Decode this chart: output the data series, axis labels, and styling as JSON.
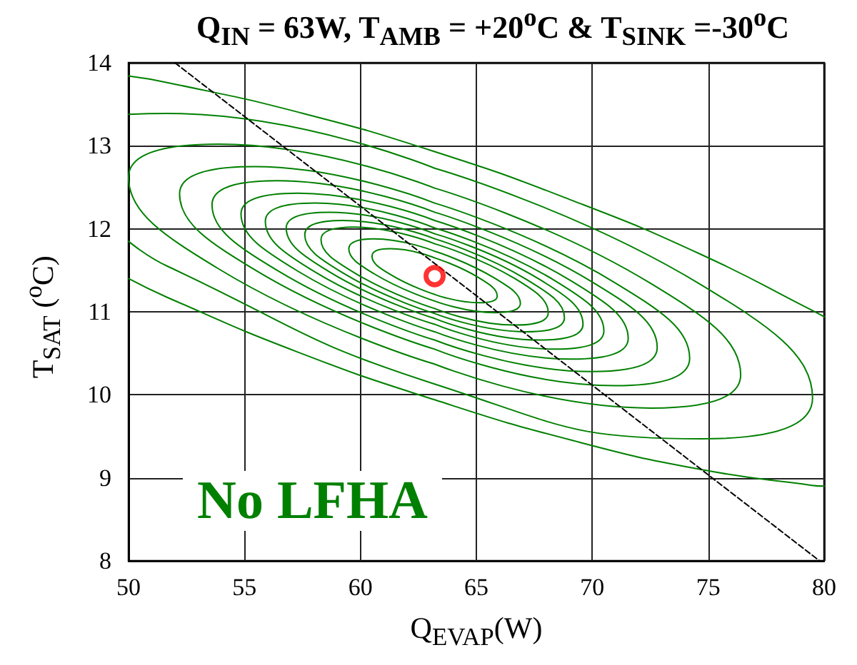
{
  "chart_data": {
    "type": "line",
    "title": "Q$_{IN}$ = 63W, T$_{AMB}$ = +20$^{o}$C & T$_{SINK}$ =-30$^{o}$C",
    "xlabel": "Q$_{EVAP}$(W)",
    "ylabel": "T$_{SAT}$ ($^{o}$C)",
    "annotations": [
      "No LFHA"
    ],
    "xlim": [
      50,
      80
    ],
    "xticks": [
      50,
      55,
      60,
      65,
      70,
      75,
      80
    ],
    "ylim": [
      8,
      14
    ],
    "yticks": [
      8,
      9,
      10,
      11,
      12,
      13,
      14
    ],
    "grid": true,
    "marker": "none",
    "line_style": "solid",
    "series": [
      {
        "color": "#008000",
        "x": [
          80,
          79.46,
          74.7,
          69.15,
          63.2,
          57.25,
          51.7,
          50,
          null,
          50,
          51.7,
          57.25,
          63.2,
          69.15,
          74.7,
          79.46,
          80
        ],
        "values": [
          10.94,
          11.02,
          11.69,
          12.34,
          12.93,
          13.41,
          13.76,
          13.84,
          null,
          11.4,
          11.17,
          10.52,
          9.94,
          9.45,
          9.1,
          8.91,
          8.9
        ]
      },
      {
        "color": "#008000",
        "x": [
          63.2,
          51.67,
          50,
          null,
          50,
          51.67,
          63.2,
          74.73,
          79.5,
          74.73,
          63.2
        ],
        "values": [
          12.73,
          13.39,
          13.38,
          null,
          11.85,
          11.55,
          10.13,
          9.47,
          9.96,
          11.32,
          12.73
        ]
      },
      {
        "color": "#008000",
        "x": [
          63.2,
          53.87,
          50.0,
          53.87,
          63.2,
          null,
          63.2,
          72.53,
          76.4,
          72.53,
          63.2
        ],
        "values": [
          12.49,
          13.02,
          12.62,
          11.52,
          10.37,
          null,
          10.37,
          9.84,
          10.24,
          11.34,
          12.49
        ]
      },
      {
        "color": "#008000",
        "x": [
          63.2,
          55.42,
          52.2,
          55.42,
          63.2,
          null,
          63.2,
          70.98,
          74.2,
          70.98,
          63.2
        ],
        "values": [
          12.31,
          12.75,
          12.42,
          11.51,
          10.55,
          null,
          10.55,
          10.11,
          10.44,
          11.35,
          12.31
        ]
      },
      {
        "color": "#008000",
        "x": [
          63.2,
          56.41,
          53.6,
          56.41,
          63.2,
          null,
          63.2,
          69.99,
          72.8,
          69.99,
          63.2
        ],
        "values": [
          12.2,
          12.58,
          12.29,
          11.5,
          10.66,
          null,
          10.66,
          10.28,
          10.57,
          11.36,
          12.2
        ]
      },
      {
        "color": "#008000",
        "x": [
          63.2,
          57.3,
          54.85,
          57.3,
          63.2,
          null,
          63.2,
          69.1,
          71.55,
          69.1,
          63.2
        ],
        "values": [
          12.1,
          12.43,
          12.18,
          11.49,
          10.76,
          null,
          10.76,
          10.43,
          10.68,
          11.37,
          12.1
        ]
      },
      {
        "color": "#008000",
        "x": [
          63.2,
          58.04,
          55.9,
          58.04,
          63.2,
          null,
          63.2,
          68.36,
          70.5,
          68.36,
          63.2
        ],
        "values": [
          12.01,
          12.31,
          12.09,
          11.48,
          10.85,
          null,
          10.85,
          10.55,
          10.77,
          11.38,
          12.01
        ]
      },
      {
        "color": "#008000",
        "x": [
          63.2,
          58.67,
          56.8,
          58.67,
          63.2,
          null,
          63.2,
          67.73,
          69.6,
          67.73,
          63.2
        ],
        "values": [
          11.94,
          12.2,
          12.01,
          11.48,
          10.92,
          null,
          10.92,
          10.66,
          10.85,
          11.39,
          11.94
        ]
      },
      {
        "color": "#008000",
        "x": [
          63.2,
          59.24,
          57.6,
          59.24,
          63.2,
          null,
          63.2,
          67.16,
          68.8,
          67.16,
          63.2
        ],
        "values": [
          11.88,
          12.1,
          11.93,
          11.47,
          10.98,
          null,
          10.98,
          10.76,
          10.93,
          11.39,
          11.88
        ]
      },
      {
        "color": "#008000",
        "x": [
          63.2,
          59.74,
          58.3,
          59.74,
          63.2,
          null,
          63.2,
          66.66,
          68.1,
          66.66,
          63.2
        ],
        "values": [
          11.82,
          12.02,
          11.87,
          11.47,
          11.04,
          null,
          11.04,
          10.84,
          10.99,
          11.4,
          11.82
        ]
      },
      {
        "color": "#008000",
        "x": [
          63.2,
          60.58,
          59.5,
          60.58,
          63.2,
          null,
          63.2,
          65.82,
          66.9,
          65.82,
          63.2
        ],
        "values": [
          11.73,
          11.88,
          11.76,
          11.46,
          11.13,
          null,
          11.13,
          10.99,
          11.1,
          11.4,
          11.73
        ]
      },
      {
        "color": "#008000",
        "x": [
          63.2,
          61.29,
          60.5,
          61.29,
          63.2,
          null,
          63.2,
          65.11,
          65.9,
          65.11,
          63.2
        ],
        "values": [
          11.65,
          11.76,
          11.67,
          11.45,
          11.21,
          null,
          11.21,
          11.11,
          11.19,
          11.41,
          11.65
        ]
      },
      {
        "color": "#000000",
        "line_style": "dashed",
        "x": [
          52,
          79.8
        ],
        "values": [
          14,
          8
        ]
      },
      {
        "type": "scatter",
        "marker": "circle",
        "color": "#ff0000",
        "x": [
          63.2
        ],
        "values": [
          11.43
        ]
      }
    ]
  }
}
